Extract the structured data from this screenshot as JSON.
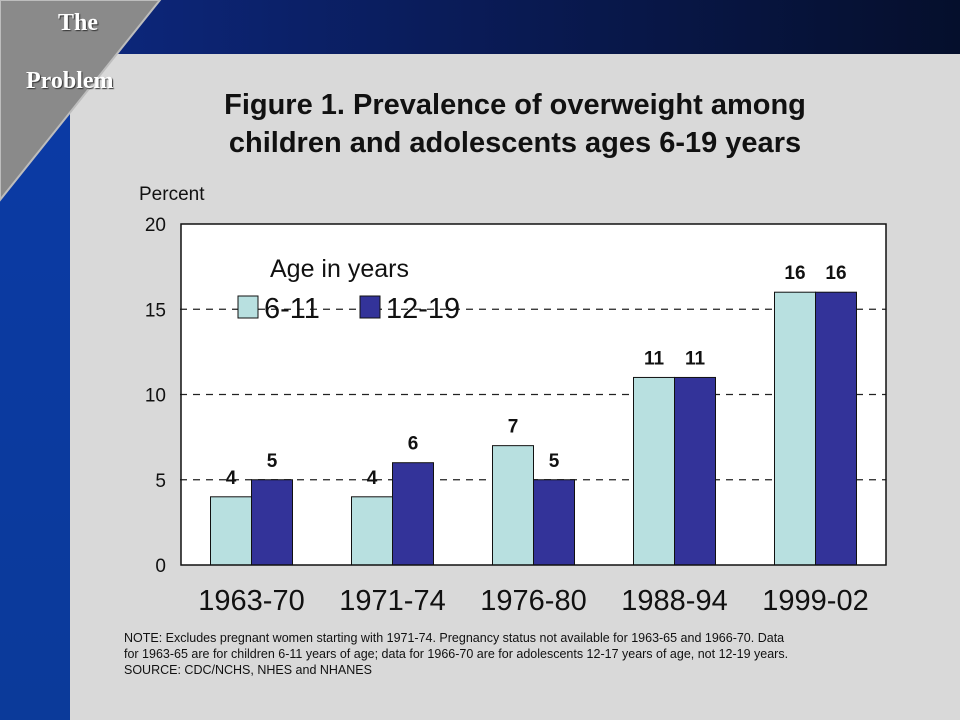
{
  "slide": {
    "section_label_line1": "The",
    "section_label_line2": "Problem",
    "colors": {
      "background": "#d9d9d9",
      "frame": "#0b3a9a",
      "series_6_11": "#b8e0e0",
      "series_12_19": "#333399"
    }
  },
  "chart_data": {
    "type": "bar",
    "title_line1": "Figure 1. Prevalence of overweight among",
    "title_line2": "children and adolescents ages 6-19 years",
    "ylabel": "Percent",
    "xlabel": "",
    "ylim": [
      0,
      20
    ],
    "yticks": [
      "0",
      "5",
      "10",
      "15",
      "20"
    ],
    "grid": "dashed at 5, 10, 15",
    "categories": [
      "1963-70",
      "1971-74",
      "1976-80",
      "1988-94",
      "1999-02"
    ],
    "legend": {
      "title": "Age in years",
      "placement": "top-left"
    },
    "series": [
      {
        "name": "6-11",
        "values": [
          4,
          4,
          7,
          11,
          16
        ],
        "labels": [
          "4",
          "4",
          "7",
          "11",
          "16"
        ],
        "color": "#b8e0e0"
      },
      {
        "name": "12-19",
        "values": [
          5,
          6,
          5,
          11,
          16
        ],
        "labels": [
          "5",
          "6",
          "5",
          "11",
          "16"
        ],
        "color": "#333399"
      }
    ],
    "note_lines": [
      "NOTE:  Excludes pregnant women starting with 1971-74.  Pregnancy status not available for 1963-65 and 1966-70.  Data",
      "for 1963-65 are for children 6-11 years of age; data for 1966-70 are for adolescents 12-17 years of age, not 12-19 years.",
      "SOURCE: CDC/NCHS, NHES and NHANES"
    ]
  }
}
